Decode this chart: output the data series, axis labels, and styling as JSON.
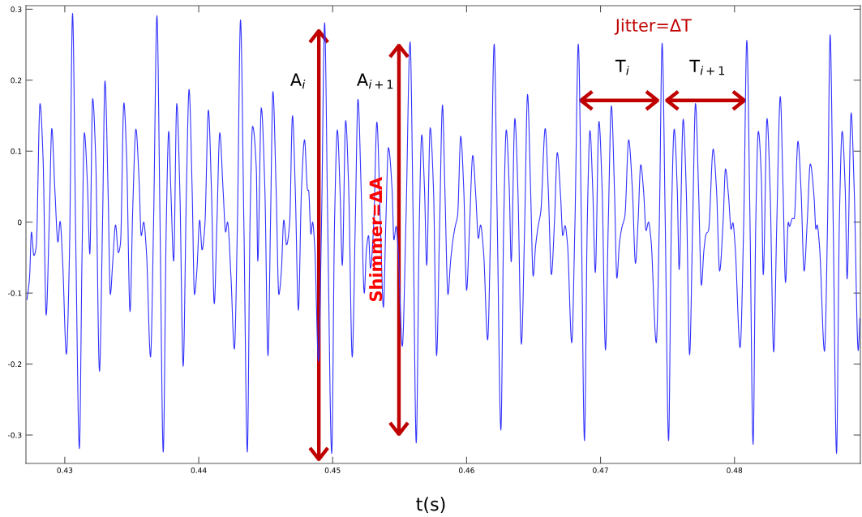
{
  "chart_data": {
    "type": "line",
    "xlabel": "t(s)",
    "xlim": [
      0.4271,
      0.4894
    ],
    "ylim": [
      -0.34,
      0.305
    ],
    "xticks": [
      0.43,
      0.44,
      0.45,
      0.46,
      0.47,
      0.48
    ],
    "yticks": [
      -0.3,
      -0.2,
      -0.1,
      0,
      0.1,
      0.2,
      0.3
    ],
    "grid": false,
    "legend": false,
    "marker": "none",
    "line_style": "solid",
    "annotations": [
      "A$_{i}$",
      "A$_{i+1}$",
      "Shimmer=ΔA",
      "Jitter=ΔT",
      "T$_{i}$",
      "T$_{i+1}$"
    ],
    "series": [
      {
        "color": "#3333ff",
        "x": [
          0.42718,
          0.42737,
          0.42751,
          0.42769,
          0.42787,
          0.42815,
          0.42838,
          0.42861,
          0.42884,
          0.42903,
          0.42926,
          0.42949,
          0.42965,
          0.42984,
          0.43012,
          0.43035,
          0.43058,
          0.43083,
          0.43109,
          0.43129,
          0.43146,
          0.43169,
          0.43187,
          0.43208,
          0.43231,
          0.43259,
          0.43282,
          0.433,
          0.43323,
          0.4334,
          0.43358,
          0.43379,
          0.434,
          0.43416,
          0.43441,
          0.43462,
          0.43487,
          0.43508,
          0.43531,
          0.43554,
          0.43571,
          0.43589,
          0.4361,
          0.4364,
          0.43663,
          0.43688,
          0.43711,
          0.43735,
          0.43758,
          0.43776,
          0.43792,
          0.43813,
          0.43836,
          0.43859,
          0.43884,
          0.43908,
          0.43928,
          0.43951,
          0.43968,
          0.43986,
          0.44007,
          0.44025,
          0.44046,
          0.44072,
          0.44095,
          0.44116,
          0.44136,
          0.44157,
          0.44182,
          0.44201,
          0.44215,
          0.4424,
          0.44266,
          0.44289,
          0.44312,
          0.44337,
          0.44363,
          0.44383,
          0.44402,
          0.4443,
          0.44441,
          0.44467,
          0.44494,
          0.44517,
          0.44536,
          0.44554,
          0.44578,
          0.44598,
          0.44617,
          0.44635,
          0.44656,
          0.44679,
          0.447,
          0.44721,
          0.44744,
          0.44767,
          0.4479,
          0.44813,
          0.4482,
          0.44838,
          0.4485,
          0.44866,
          0.44894,
          0.44917,
          0.4494,
          0.44963,
          0.44993,
          0.45014,
          0.45035,
          0.45055,
          0.45072,
          0.45097,
          0.4512,
          0.45146,
          0.45169,
          0.45189,
          0.45213,
          0.45236,
          0.45252,
          0.45268,
          0.45282,
          0.45307,
          0.4533,
          0.45356,
          0.45379,
          0.45397,
          0.45416,
          0.45444,
          0.45457,
          0.45474,
          0.4549,
          0.4552,
          0.45547,
          0.45578,
          0.45601,
          0.45624,
          0.45647,
          0.45665,
          0.45686,
          0.45702,
          0.45728,
          0.45753,
          0.45776,
          0.45799,
          0.4582,
          0.45838,
          0.45861,
          0.4588,
          0.45898,
          0.45915,
          0.45933,
          0.45956,
          0.45979,
          0.46,
          0.46023,
          0.46046,
          0.46069,
          0.46088,
          0.46104,
          0.46127,
          0.46157,
          0.4618,
          0.46206,
          0.46229,
          0.46256,
          0.46277,
          0.46296,
          0.46319,
          0.46333,
          0.4636,
          0.46383,
          0.46409,
          0.46434,
          0.46455,
          0.46478,
          0.46497,
          0.46515,
          0.46534,
          0.46554,
          0.46587,
          0.4661,
          0.46633,
          0.46656,
          0.46677,
          0.46702,
          0.46718,
          0.46735,
          0.46753,
          0.46785,
          0.46809,
          0.46834,
          0.46857,
          0.4688,
          0.46901,
          0.46921,
          0.46942,
          0.46961,
          0.46988,
          0.47012,
          0.47037,
          0.47058,
          0.47081,
          0.47104,
          0.47122,
          0.47141,
          0.47159,
          0.47182,
          0.4721,
          0.47238,
          0.47261,
          0.4728,
          0.473,
          0.47321,
          0.4734,
          0.47358,
          0.47377,
          0.47416,
          0.47439,
          0.4746,
          0.47483,
          0.47508,
          0.47529,
          0.4755,
          0.47573,
          0.47587,
          0.47617,
          0.4764,
          0.47665,
          0.47688,
          0.47709,
          0.47732,
          0.47753,
          0.47772,
          0.47788,
          0.47806,
          0.47841,
          0.47866,
          0.47889,
          0.47915,
          0.47933,
          0.47956,
          0.47975,
          0.47988,
          0.48005,
          0.48042,
          0.48069,
          0.48092,
          0.48116,
          0.48139,
          0.48159,
          0.48178,
          0.48201,
          0.48215,
          0.48243,
          0.48266,
          0.48293,
          0.48316,
          0.48342,
          0.48363,
          0.48381,
          0.48402,
          0.48411,
          0.48432,
          0.48446,
          0.48474,
          0.48497,
          0.4852,
          0.48543,
          0.48566,
          0.48594,
          0.48608,
          0.48617,
          0.48635,
          0.48672,
          0.48695,
          0.48714,
          0.48737,
          0.48762,
          0.48783,
          0.48804,
          0.48827,
          0.48841,
          0.48871,
          0.48894,
          0.48924,
          0.48936
        ],
        "values": [
          -0.109,
          -0.078,
          -0.014,
          -0.047,
          -0.034,
          0.167,
          0.089,
          -0.131,
          0.001,
          0.132,
          0.045,
          -0.028,
          0.001,
          -0.056,
          -0.186,
          -0.043,
          0.294,
          -0.043,
          -0.319,
          -0.043,
          0.126,
          0.054,
          -0.045,
          0.174,
          0.089,
          -0.21,
          0.001,
          0.199,
          0.045,
          -0.102,
          -0.056,
          -0.004,
          -0.043,
          -0.03,
          0.168,
          0.089,
          -0.126,
          0.023,
          0.131,
          0.062,
          -0.019,
          0,
          -0.043,
          -0.19,
          0,
          0.291,
          0,
          -0.324,
          0,
          0.128,
          0.045,
          -0.055,
          0.167,
          0.045,
          -0.203,
          0.045,
          0.187,
          0.045,
          -0.102,
          -0.069,
          0.003,
          -0.039,
          -0.004,
          0.158,
          0.045,
          -0.115,
          0,
          0.126,
          0.045,
          -0.014,
          0,
          -0.074,
          -0.179,
          0,
          0.285,
          0,
          -0.324,
          0,
          0.135,
          0.075,
          -0.055,
          0.161,
          0.045,
          -0.188,
          0,
          0.184,
          0.045,
          -0.102,
          -0.069,
          0.003,
          -0.032,
          0,
          0.15,
          0.045,
          -0.124,
          0.045,
          0.116,
          0.045,
          0.045,
          -0.017,
          0,
          -0.034,
          -0.196,
          0,
          0.281,
          0,
          -0.326,
          0,
          0.13,
          0.045,
          -0.061,
          0.143,
          0.045,
          -0.19,
          0,
          0.173,
          0.045,
          -0.1,
          -0.039,
          -0.019,
          -0.065,
          0,
          0.141,
          0,
          -0.12,
          0,
          0.105,
          0.045,
          -0.025,
          -0.006,
          -0.043,
          -0.175,
          0,
          0.254,
          0,
          -0.311,
          0,
          0.123,
          0.045,
          -0.061,
          0.133,
          0.045,
          -0.188,
          0,
          0.165,
          0.045,
          -0.102,
          -0.056,
          -0.025,
          -0.006,
          0.01,
          0.121,
          0.045,
          -0.096,
          0,
          0.094,
          0.036,
          -0.023,
          -0.004,
          -0.043,
          -0.166,
          0,
          0.251,
          0,
          -0.293,
          0,
          0.13,
          0.045,
          -0.056,
          0.146,
          0.045,
          -0.172,
          0,
          0.18,
          0.045,
          -0.076,
          -0.034,
          -0.006,
          0.015,
          0.132,
          0.045,
          -0.074,
          0,
          0.098,
          0.036,
          -0.019,
          -0.005,
          -0.03,
          -0.17,
          0,
          0.251,
          0,
          -0.308,
          0,
          0.129,
          0.045,
          -0.071,
          0.142,
          0.045,
          -0.18,
          0,
          0.164,
          0.045,
          -0.079,
          -0.03,
          -0.008,
          0.009,
          0.116,
          0.045,
          -0.058,
          0,
          0.081,
          0.045,
          -0.012,
          0,
          -0.025,
          -0.17,
          0,
          0.252,
          0,
          -0.308,
          0,
          0.131,
          0.045,
          -0.067,
          0.145,
          0.045,
          -0.187,
          0,
          0.167,
          0.045,
          -0.089,
          -0.039,
          -0.017,
          -0.012,
          0.103,
          0.045,
          -0.069,
          0,
          0.075,
          0.036,
          -0.01,
          -0.001,
          -0.034,
          -0.177,
          0,
          0.256,
          0,
          -0.313,
          0,
          0.128,
          0.062,
          -0.074,
          0.146,
          0.045,
          -0.183,
          0,
          0.177,
          0.045,
          -0.085,
          0,
          -0.006,
          0.005,
          0.005,
          0.114,
          0.045,
          -0.069,
          0,
          0.082,
          0.036,
          -0.01,
          -0.004,
          -0.034,
          -0.182,
          0,
          0.264,
          0,
          -0.326,
          0,
          0.128,
          0.045,
          -0.08,
          0.154,
          0.045,
          -0.181,
          -0.136
        ]
      }
    ]
  }
}
